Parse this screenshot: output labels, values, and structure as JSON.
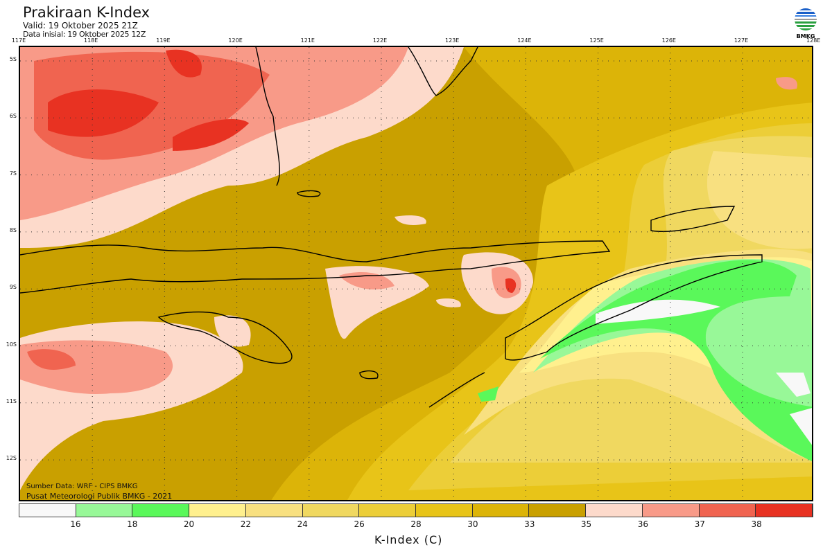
{
  "header": {
    "title": "Prakiraan K-Index",
    "valid": "Valid: 19 Oktober 2025 21Z",
    "data_inisial": "Data inisial: 19 Oktober 2025 12Z",
    "logo_text": "BMKG"
  },
  "axes": {
    "lon_ticks": [
      "117E",
      "118E",
      "119E",
      "120E",
      "121E",
      "122E",
      "123E",
      "124E",
      "125E",
      "126E",
      "127E",
      "128E"
    ],
    "lat_ticks": [
      "5S",
      "6S",
      "7S",
      "8S",
      "9S",
      "10S",
      "11S",
      "12S"
    ]
  },
  "footer": {
    "source": "Sumber Data: WRF - CIPS BMKG",
    "credit": "Pusat Meteorologi Publik BMKG - 2021"
  },
  "legend": {
    "labels": [
      "16",
      "18",
      "20",
      "22",
      "24",
      "26",
      "28",
      "30",
      "33",
      "35",
      "36",
      "37",
      "38"
    ],
    "colors": [
      "#f8f8f8",
      "#98f898",
      "#5af85a",
      "#fff08e",
      "#f8e080",
      "#f0d860",
      "#ecce38",
      "#e8c418",
      "#dcb408",
      "#c9a000",
      "#fddacb",
      "#f89a88",
      "#f06450",
      "#e83222"
    ],
    "title": "K-Index (C)"
  }
}
